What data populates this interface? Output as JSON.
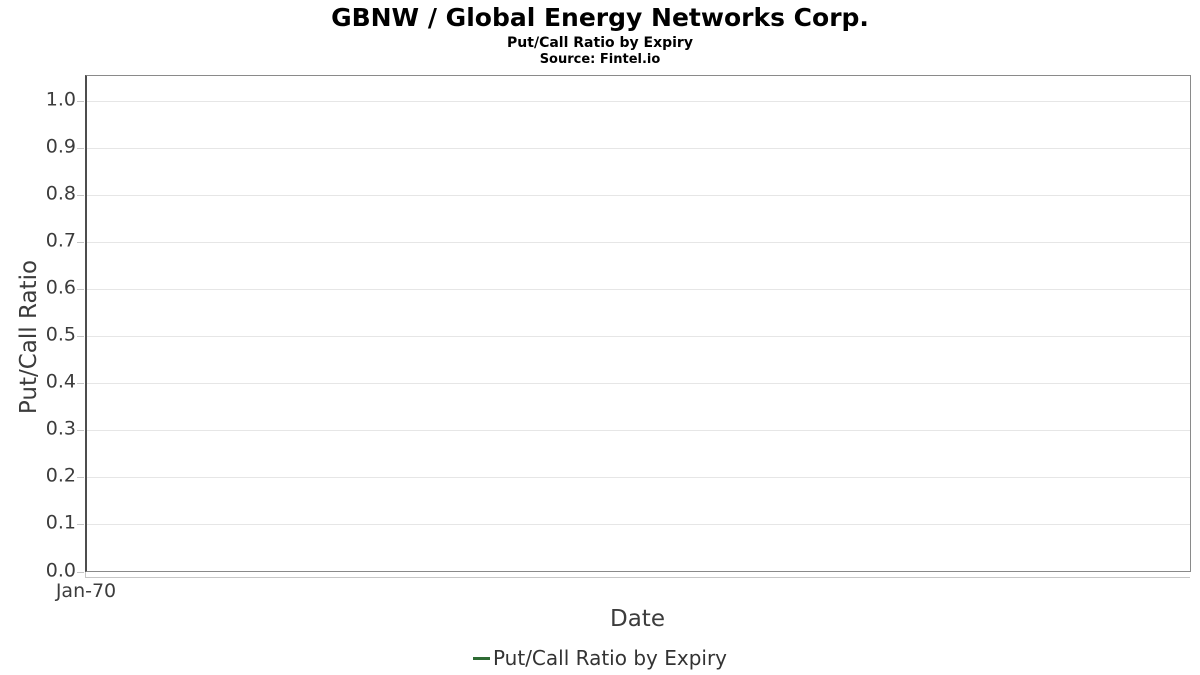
{
  "chart_data": {
    "type": "line",
    "title": "GBNW / Global Energy Networks Corp.",
    "subtitle": "Put/Call Ratio by Expiry",
    "source": "Source: Fintel.io",
    "xlabel": "Date",
    "ylabel": "Put/Call Ratio",
    "x_ticks": [
      "Jan-70"
    ],
    "y_ticks": [
      "0.0",
      "0.1",
      "0.2",
      "0.3",
      "0.4",
      "0.5",
      "0.6",
      "0.7",
      "0.8",
      "0.9",
      "1.0"
    ],
    "ylim": [
      0.0,
      1.055
    ],
    "grid": "horizontal-only",
    "legend": {
      "position": "bottom-center",
      "entries": [
        {
          "label": "Put/Call Ratio by Expiry",
          "color": "#2e6b34",
          "marker": "line-dash"
        }
      ]
    },
    "series": [
      {
        "name": "Put/Call Ratio by Expiry",
        "color": "#2e6b34",
        "x": [],
        "values": []
      }
    ]
  },
  "colors": {
    "background": "#ffffff",
    "title_text": "#000000",
    "tick_label": "#3c3c3c",
    "axis_label": "#3c3c3c",
    "legend_text": "#333333",
    "series_green": "#2e6b34",
    "gridline": "#e6e6e6",
    "tick_mark": "#c6c6c6",
    "plot_border": "#8a8a8a",
    "y_axis_line": "#4d4d4d"
  }
}
